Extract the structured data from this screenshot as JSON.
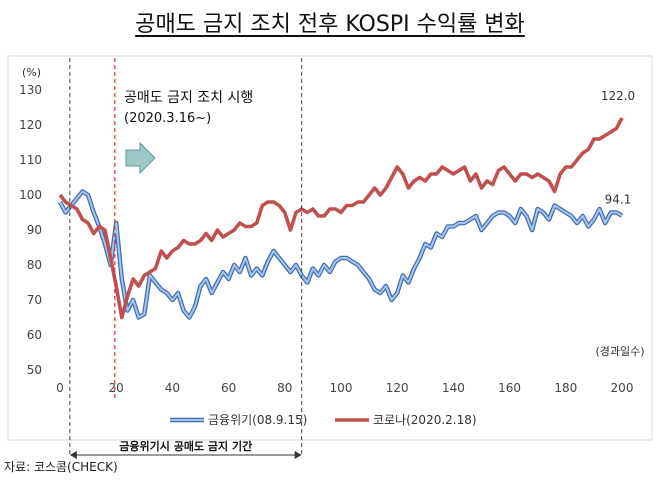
{
  "title": "공매도 금지 조치 전후 KOSPI 수익률 변화",
  "source": "자료: 코스콤(CHECK)",
  "chart_data": {
    "type": "line",
    "ylabel": "(%)",
    "xlabel": "(경과일수)",
    "xlim": [
      0,
      200
    ],
    "ylim": [
      50,
      130
    ],
    "x_ticks": [
      0,
      20,
      40,
      60,
      80,
      100,
      120,
      140,
      160,
      180,
      200
    ],
    "y_ticks": [
      50,
      60,
      70,
      80,
      90,
      100,
      110,
      120,
      130
    ],
    "grid": false,
    "legend_position": "bottom",
    "series": [
      {
        "name": "금융위기(08.9.15)",
        "color": "#5b87c7",
        "end_label": "94.1",
        "x": [
          0,
          2,
          4,
          6,
          8,
          10,
          12,
          14,
          16,
          18,
          20,
          22,
          24,
          26,
          28,
          30,
          32,
          34,
          36,
          38,
          40,
          42,
          44,
          46,
          48,
          50,
          52,
          54,
          56,
          58,
          60,
          62,
          64,
          66,
          68,
          70,
          72,
          74,
          76,
          78,
          80,
          82,
          84,
          86,
          88,
          90,
          92,
          94,
          96,
          98,
          100,
          102,
          104,
          106,
          108,
          110,
          112,
          114,
          116,
          118,
          120,
          122,
          124,
          126,
          128,
          130,
          132,
          134,
          136,
          138,
          140,
          142,
          144,
          146,
          148,
          150,
          152,
          154,
          156,
          158,
          160,
          162,
          164,
          166,
          168,
          170,
          172,
          174,
          176,
          178,
          180,
          182,
          184,
          186,
          188,
          190,
          192,
          194,
          196,
          198,
          200
        ],
        "values": [
          98,
          95,
          97,
          99,
          101,
          100,
          95,
          91,
          86,
          80,
          92,
          76,
          67,
          70,
          65,
          66,
          77,
          75,
          73,
          72,
          70,
          72,
          67,
          65,
          68,
          74,
          76,
          72,
          75,
          78,
          76,
          80,
          78,
          82,
          77,
          79,
          77,
          81,
          84,
          82,
          80,
          78,
          80,
          77,
          75,
          79,
          77,
          80,
          78,
          81,
          82,
          82,
          81,
          80,
          78,
          76,
          73,
          72,
          74,
          70,
          72,
          77,
          75,
          79,
          82,
          86,
          85,
          89,
          88,
          91,
          91,
          92,
          92,
          93,
          94,
          90,
          92,
          94,
          95,
          95,
          94,
          92,
          96,
          94,
          90,
          96,
          95,
          93,
          97,
          96,
          95,
          94,
          92,
          94,
          91,
          93,
          96,
          92,
          95,
          95,
          94.1
        ]
      },
      {
        "name": "코로나(2020.2.18)",
        "color": "#c0504d",
        "end_label": "122.0",
        "x": [
          0,
          2,
          4,
          6,
          8,
          10,
          12,
          14,
          16,
          18,
          20,
          22,
          24,
          26,
          28,
          30,
          32,
          34,
          36,
          38,
          40,
          42,
          44,
          46,
          48,
          50,
          52,
          54,
          56,
          58,
          60,
          62,
          64,
          66,
          68,
          70,
          72,
          74,
          76,
          78,
          80,
          82,
          84,
          86,
          88,
          90,
          92,
          94,
          96,
          98,
          100,
          102,
          104,
          106,
          108,
          110,
          112,
          114,
          116,
          118,
          120,
          122,
          124,
          126,
          128,
          130,
          132,
          134,
          136,
          138,
          140,
          142,
          144,
          146,
          148,
          150,
          152,
          154,
          156,
          158,
          160,
          162,
          164,
          166,
          168,
          170,
          172,
          174,
          176,
          178,
          180,
          182,
          184,
          186,
          188,
          190,
          192,
          194,
          196,
          198,
          200
        ],
        "values": [
          100,
          98,
          97,
          96,
          93,
          92,
          89,
          91,
          90,
          82,
          74,
          65,
          71,
          76,
          74,
          77,
          78,
          79,
          84,
          82,
          84,
          85,
          87,
          86,
          86,
          87,
          89,
          87,
          90,
          88,
          89,
          90,
          92,
          91,
          91,
          92,
          97,
          98,
          98,
          97,
          95,
          90,
          95,
          96,
          95,
          96,
          94,
          94,
          96,
          96,
          95,
          97,
          97,
          98,
          98,
          100,
          102,
          100,
          102,
          105,
          108,
          106,
          102,
          104,
          105,
          104,
          106,
          106,
          108,
          107,
          106,
          107,
          108,
          104,
          106,
          102,
          104,
          103,
          107,
          108,
          106,
          104,
          106,
          106,
          105,
          106,
          105,
          104,
          101,
          106,
          108,
          108,
          110,
          112,
          113,
          116,
          116,
          117,
          118,
          119,
          122.0
        ]
      }
    ],
    "annotations": {
      "policy_text_1": "공매도 금지 조치 시행",
      "policy_text_2": "(2020.3.16~)",
      "gfc_span_label": "금융위기시 공매도 금지 기간"
    }
  }
}
